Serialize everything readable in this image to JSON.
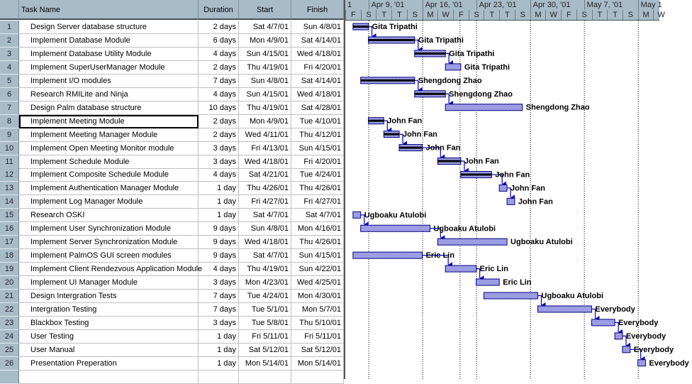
{
  "table": {
    "headers": {
      "task_name": "Task Name",
      "duration": "Duration",
      "start": "Start",
      "finish": "Finish"
    },
    "selected_row": 8,
    "rows": [
      {
        "id": "1",
        "name": "Design Server database structure",
        "duration": "2 days",
        "start": "Sat 4/7/01",
        "finish": "Sun 4/8/01",
        "resource": "Gita Tripathi",
        "pred": null,
        "progress": 100
      },
      {
        "id": "2",
        "name": "Implement Database Module",
        "duration": "6 days",
        "start": "Mon 4/9/01",
        "finish": "Sat 4/14/01",
        "resource": "Gita Tripathi",
        "pred": 1,
        "progress": 100
      },
      {
        "id": "3",
        "name": "Implement  Database Utility Module",
        "duration": "4 days",
        "start": "Sun 4/15/01",
        "finish": "Wed 4/18/01",
        "resource": "Gita Tripathi",
        "pred": 2,
        "progress": 100
      },
      {
        "id": "4",
        "name": "Implement SuperUserManager Module",
        "duration": "2 days",
        "start": "Thu 4/19/01",
        "finish": "Fri 4/20/01",
        "resource": "Gita Tripathi",
        "pred": 3,
        "progress": 0
      },
      {
        "id": "5",
        "name": "Implement I/O modules",
        "duration": "7 days",
        "start": "Sun 4/8/01",
        "finish": "Sat 4/14/01",
        "resource": "Shengdong Zhao",
        "pred": null,
        "progress": 100
      },
      {
        "id": "6",
        "name": "Research RMILite and Ninja",
        "duration": "4 days",
        "start": "Sun 4/15/01",
        "finish": "Wed 4/18/01",
        "resource": "Shengdong Zhao",
        "pred": 5,
        "progress": 100
      },
      {
        "id": "7",
        "name": "Design Palm database structure",
        "duration": "10 days",
        "start": "Thu 4/19/01",
        "finish": "Sat 4/28/01",
        "resource": "Shengdong Zhao",
        "pred": 6,
        "progress": 0
      },
      {
        "id": "8",
        "name": "Implement Meeting Module",
        "duration": "2 days",
        "start": "Mon 4/9/01",
        "finish": "Tue 4/10/01",
        "resource": "John Fan",
        "pred": null,
        "progress": 100
      },
      {
        "id": "9",
        "name": "Implement Meeting Manager Module",
        "duration": "2 days",
        "start": "Wed 4/11/01",
        "finish": "Thu 4/12/01",
        "resource": "John Fan",
        "pred": 8,
        "progress": 100
      },
      {
        "id": "10",
        "name": "Implement Open Meeting Monitor module",
        "duration": "3 days",
        "start": "Fri 4/13/01",
        "finish": "Sun 4/15/01",
        "resource": "John Fan",
        "pred": 9,
        "progress": 100
      },
      {
        "id": "11",
        "name": "Implement Schedule Module",
        "duration": "3 days",
        "start": "Wed 4/18/01",
        "finish": "Fri 4/20/01",
        "resource": "John Fan",
        "pred": 10,
        "progress": 100
      },
      {
        "id": "12",
        "name": "Implement Composite Schedule Module",
        "duration": "4 days",
        "start": "Sat 4/21/01",
        "finish": "Tue 4/24/01",
        "resource": "John Fan",
        "pred": 11,
        "progress": 100
      },
      {
        "id": "13",
        "name": "Implement Authentication Manager Module",
        "duration": "1 day",
        "start": "Thu 4/26/01",
        "finish": "Thu 4/26/01",
        "resource": "John Fan",
        "pred": 12,
        "progress": 0
      },
      {
        "id": "14",
        "name": "Implement Log Manager Module",
        "duration": "1 day",
        "start": "Fri 4/27/01",
        "finish": "Fri 4/27/01",
        "resource": "John Fan",
        "pred": 13,
        "progress": 0
      },
      {
        "id": "15",
        "name": "Research OSKI",
        "duration": "1 day",
        "start": "Sat 4/7/01",
        "finish": "Sat 4/7/01",
        "resource": "Ugboaku Atulobi",
        "pred": null,
        "progress": 0
      },
      {
        "id": "16",
        "name": "Implement User Synchronization Module",
        "duration": "9 days",
        "start": "Sun 4/8/01",
        "finish": "Mon 4/16/01",
        "resource": "Ugboaku Atulobi",
        "pred": 15,
        "progress": 0
      },
      {
        "id": "17",
        "name": "Implement Server Synchronization Module",
        "duration": "9 days",
        "start": "Wed 4/18/01",
        "finish": "Thu 4/26/01",
        "resource": "Ugboaku Atulobi",
        "pred": 16,
        "progress": 0
      },
      {
        "id": "18",
        "name": "Implement PalmOS GUI screen modules",
        "duration": "9 days",
        "start": "Sat 4/7/01",
        "finish": "Sun 4/15/01",
        "resource": "Eric Lin",
        "pred": null,
        "progress": 0
      },
      {
        "id": "19",
        "name": "Implement Client Rendezvous Application Module",
        "duration": "4 days",
        "start": "Thu 4/19/01",
        "finish": "Sun 4/22/01",
        "resource": "Eric Lin",
        "pred": 18,
        "progress": 0
      },
      {
        "id": "20",
        "name": "Implement UI Manager Module",
        "duration": "3 days",
        "start": "Mon 4/23/01",
        "finish": "Wed 4/25/01",
        "resource": "Eric Lin",
        "pred": 19,
        "progress": 0
      },
      {
        "id": "21",
        "name": "Design Intergration Tests",
        "duration": "7 days",
        "start": "Tue 4/24/01",
        "finish": "Mon 4/30/01",
        "resource": "Ugboaku Atulobi",
        "pred": null,
        "progress": 0
      },
      {
        "id": "22",
        "name": "Intergration Testing",
        "duration": "7 days",
        "start": "Tue 5/1/01",
        "finish": "Mon 5/7/01",
        "resource": "Everybody",
        "pred": 21,
        "progress": 0
      },
      {
        "id": "23",
        "name": "Blackbox Testing",
        "duration": "3 days",
        "start": "Tue 5/8/01",
        "finish": "Thu 5/10/01",
        "resource": "Everybody",
        "pred": 22,
        "progress": 0
      },
      {
        "id": "24",
        "name": "User Testing",
        "duration": "1 day",
        "start": "Fri 5/11/01",
        "finish": "Fri 5/11/01",
        "resource": "Everybody",
        "pred": 23,
        "progress": 0
      },
      {
        "id": "25",
        "name": "User Manual",
        "duration": "1 day",
        "start": "Sat 5/12/01",
        "finish": "Sat 5/12/01",
        "resource": "Everybody",
        "pred": 24,
        "progress": 0
      },
      {
        "id": "26",
        "name": "Presentation Preperation",
        "duration": "1 day",
        "start": "Mon 5/14/01",
        "finish": "Mon 5/14/01",
        "resource": "Everybody",
        "pred": 25,
        "progress": 0
      }
    ]
  },
  "timescale": {
    "major": [
      "1",
      "Apr 9, '01",
      "Apr 16, '01",
      "Apr 23, '01",
      "Apr 30, '01",
      "May 7, '01",
      "May 1"
    ],
    "minor": [
      "F",
      "S",
      "T",
      "T",
      "S",
      "M",
      "W",
      "F",
      "S",
      "T",
      "T",
      "S",
      "M",
      "W",
      "F",
      "S",
      "T",
      "T",
      "S",
      "M",
      "W"
    ]
  },
  "colors": {
    "header": "#a8bcc8",
    "bar": "#3a3ac8",
    "bar_outline": "#000080",
    "progress": "#000000",
    "link": "#0000c0"
  }
}
